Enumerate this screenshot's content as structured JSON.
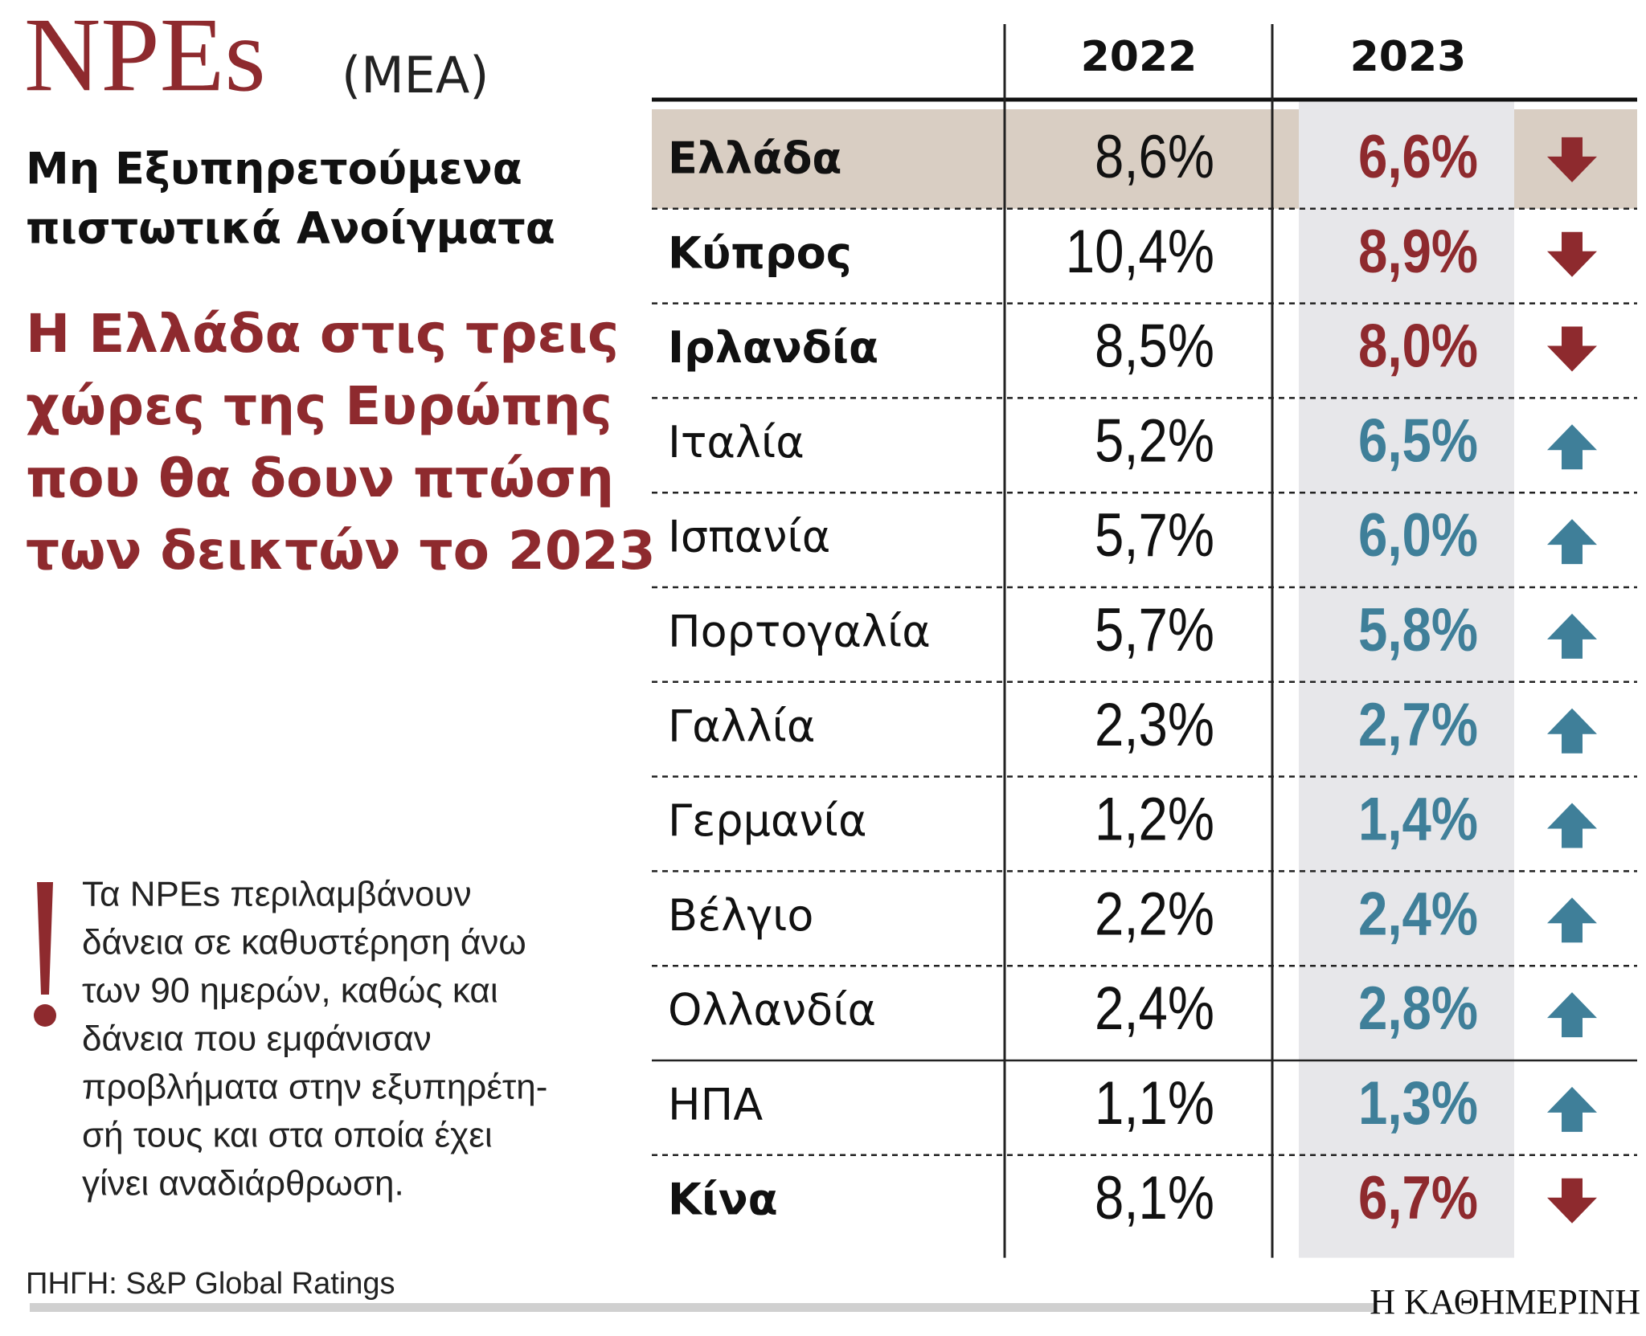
{
  "header": {
    "title": "NPEs",
    "title_note": "(ΜΕΑ)",
    "subtitle_lines": [
      "Μη Εξυπηρετούμενα",
      "πιστωτικά Ανοίγματα"
    ],
    "headline_lines": [
      "Η Ελλάδα στις τρεις",
      "χώρες της Ευρώπης",
      "που θα δουν πτώση",
      "των δεικτών το 2023"
    ]
  },
  "note_lines": [
    "Τα NPEs περιλαμβάνουν",
    "δάνεια σε καθυστέρηση άνω",
    "των 90 ημερών, καθώς και",
    "δάνεια που εμφάνισαν",
    "προβλήματα στην εξυπηρέτη-",
    "σή τους και στα οποία έχει",
    "γίνει αναδιάρθρωση."
  ],
  "source": "ΠΗΓΗ: S&P Global Ratings",
  "brand": "Η ΚΑΘΗΜΕΡΙΝΗ",
  "table": {
    "columns": [
      "2022",
      "2023"
    ],
    "rows": [
      {
        "country": "Ελλάδα",
        "v2022": "8,6%",
        "v2023": "6,6%",
        "trend": "down",
        "bold": true,
        "highlight": true
      },
      {
        "country": "Κύπρος",
        "v2022": "10,4%",
        "v2023": "8,9%",
        "trend": "down",
        "bold": true
      },
      {
        "country": "Ιρλανδία",
        "v2022": "8,5%",
        "v2023": "8,0%",
        "trend": "down",
        "bold": true
      },
      {
        "country": "Ιταλία",
        "v2022": "5,2%",
        "v2023": "6,5%",
        "trend": "up"
      },
      {
        "country": "Ισπανία",
        "v2022": "5,7%",
        "v2023": "6,0%",
        "trend": "up"
      },
      {
        "country": "Πορτογαλία",
        "v2022": "5,7%",
        "v2023": "5,8%",
        "trend": "up"
      },
      {
        "country": "Γαλλία",
        "v2022": "2,3%",
        "v2023": "2,7%",
        "trend": "up"
      },
      {
        "country": "Γερμανία",
        "v2022": "1,2%",
        "v2023": "1,4%",
        "trend": "up"
      },
      {
        "country": "Βέλγιο",
        "v2022": "2,2%",
        "v2023": "2,4%",
        "trend": "up"
      },
      {
        "country": "Ολλανδία",
        "v2022": "2,4%",
        "v2023": "2,8%",
        "trend": "up"
      },
      {
        "country": "ΗΠΑ",
        "v2022": "1,1%",
        "v2023": "1,3%",
        "trend": "up"
      },
      {
        "country": "Κίνα",
        "v2022": "8,1%",
        "v2023": "6,7%",
        "trend": "down",
        "bold": true
      }
    ]
  }
}
